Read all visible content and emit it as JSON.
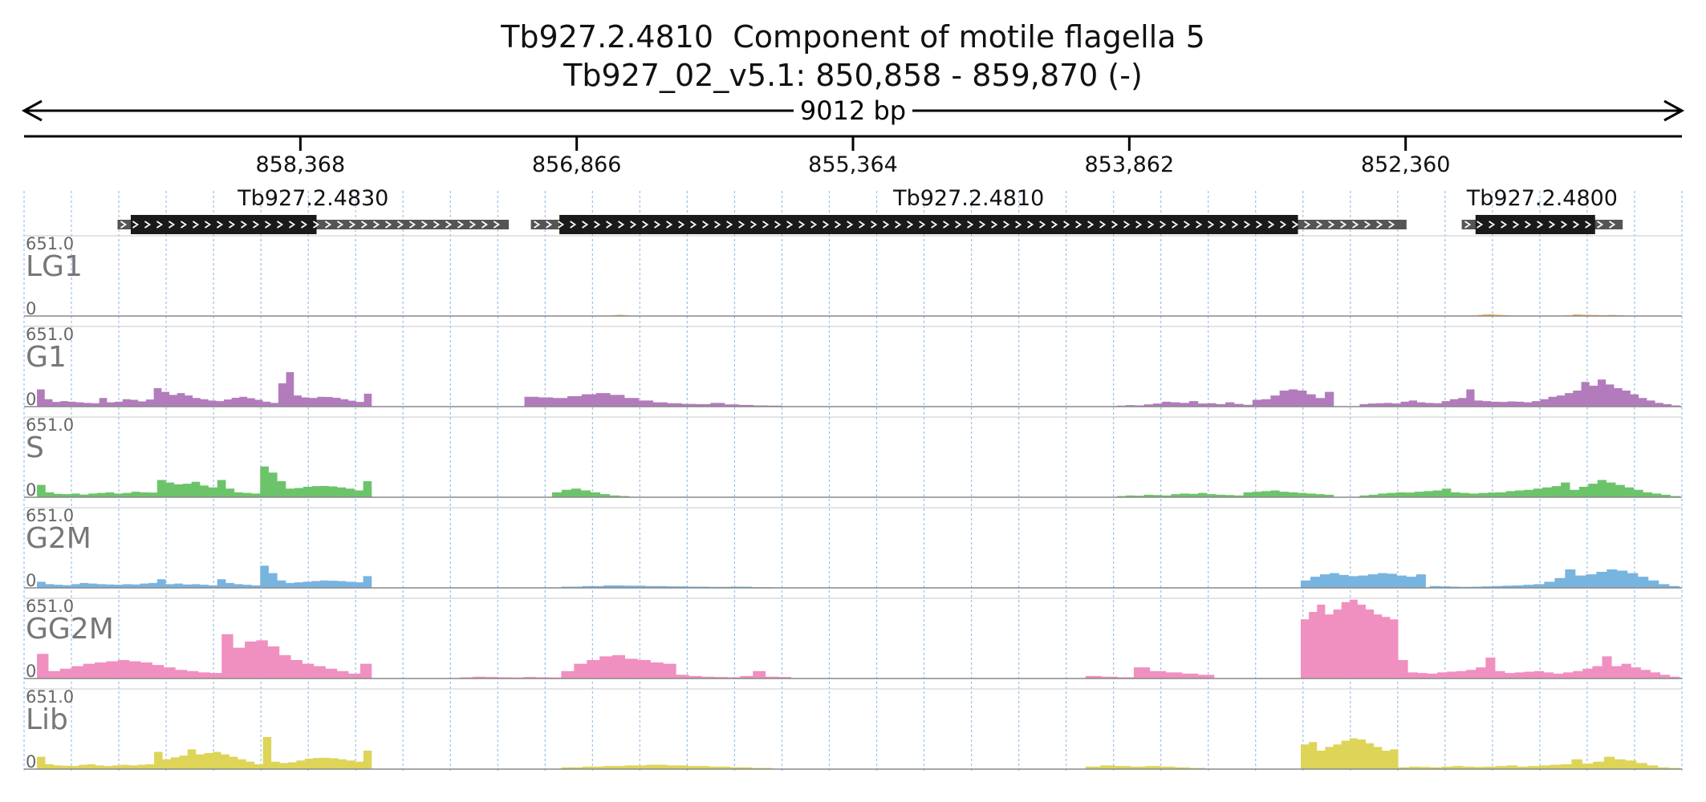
{
  "title": {
    "line1": "Tb927.2.4810  Component of motile flagella 5",
    "line2": "Tb927_02_v5.1: 850,858 - 859,870 (-)"
  },
  "region": {
    "chromosome": "Tb927_02_v5.1",
    "start": 850858,
    "end": 859870,
    "strand": "-",
    "span_label": "9012 bp"
  },
  "chart_data": {
    "type": "area",
    "x_axis": {
      "start": 859870,
      "end": 850858,
      "reversed": true,
      "ticks": [
        858368,
        856866,
        855364,
        853862,
        852360
      ],
      "tick_labels": [
        "858,368",
        "856,866",
        "855,364",
        "853,862",
        "852,360"
      ]
    },
    "genes": [
      {
        "name": "Tb927.2.4830",
        "start": 859362,
        "end": 857235,
        "cds_start": 859290,
        "cds_end": 858280
      },
      {
        "name": "Tb927.2.4810",
        "start": 857115,
        "end": 852355,
        "cds_start": 856960,
        "cds_end": 852945
      },
      {
        "name": "Tb927.2.4800",
        "start": 852055,
        "end": 851180,
        "cds_start": 851980,
        "cds_end": 851330
      }
    ],
    "ymax_label": "651.0",
    "ymin_label": "0",
    "ylim": [
      0,
      651
    ],
    "series": [
      {
        "name": "LG1",
        "color": "#f0a848",
        "regions": [
          {
            "from": 856700,
            "to": 856570,
            "values": [
              3,
              6,
              8,
              10,
              7,
              4
            ]
          },
          {
            "from": 852000,
            "to": 851760,
            "values": [
              4,
              8,
              12,
              14,
              10,
              8,
              6,
              3
            ]
          },
          {
            "from": 851500,
            "to": 851120,
            "values": [
              5,
              12,
              10,
              8,
              6,
              8,
              6,
              3
            ]
          }
        ]
      },
      {
        "name": "G1",
        "color": "#b27cbc",
        "regions": [
          {
            "from": 859800,
            "to": 857980,
            "values": [
              140,
              60,
              38,
              45,
              40,
              35,
              30,
              28,
              70,
              35,
              40,
              60,
              55,
              42,
              58,
              150,
              120,
              95,
              110,
              90,
              70,
              60,
              50,
              45,
              58,
              72,
              80,
              68,
              55,
              40,
              30,
              190,
              280,
              90,
              75,
              70,
              80,
              78,
              72,
              60,
              48,
              38,
              105
            ]
          },
          {
            "from": 857150,
            "to": 855750,
            "values": [
              80,
              75,
              70,
              85,
              100,
              110,
              95,
              70,
              50,
              35,
              28,
              22,
              20,
              30,
              18,
              14,
              10,
              8
            ]
          },
          {
            "from": 853930,
            "to": 852750,
            "values": [
              8,
              12,
              10,
              18,
              25,
              40,
              35,
              30,
              45,
              25,
              28,
              20,
              35,
              22,
              15,
              55,
              60,
              90,
              130,
              140,
              130,
              100,
              70,
              120
            ]
          },
          {
            "from": 852610,
            "to": 850870,
            "values": [
              20,
              25,
              28,
              30,
              25,
              40,
              50,
              35,
              30,
              28,
              45,
              60,
              70,
              140,
              50,
              45,
              40,
              38,
              42,
              40,
              35,
              45,
              60,
              80,
              90,
              110,
              130,
              200,
              170,
              220,
              180,
              150,
              130,
              100,
              70,
              50,
              30,
              20,
              10
            ]
          }
        ]
      },
      {
        "name": "S",
        "color": "#6cc46a",
        "regions": [
          {
            "from": 859800,
            "to": 857980,
            "values": [
              100,
              40,
              28,
              25,
              30,
              22,
              30,
              35,
              40,
              30,
              35,
              45,
              40,
              38,
              140,
              120,
              105,
              110,
              125,
              95,
              80,
              140,
              70,
              40,
              35,
              30,
              250,
              200,
              130,
              70,
              75,
              85,
              90,
              92,
              88,
              80,
              70,
              55,
              130
            ]
          },
          {
            "from": 857000,
            "to": 856580,
            "values": [
              40,
              60,
              70,
              55,
              40,
              25,
              15,
              10
            ]
          },
          {
            "from": 853930,
            "to": 852750,
            "values": [
              10,
              15,
              12,
              20,
              18,
              15,
              25,
              30,
              28,
              35,
              25,
              20,
              18,
              15,
              40,
              45,
              50,
              55,
              45,
              40,
              35,
              30,
              25,
              20
            ]
          },
          {
            "from": 852610,
            "to": 850870,
            "values": [
              15,
              20,
              30,
              35,
              40,
              38,
              45,
              50,
              55,
              70,
              40,
              35,
              30,
              35,
              38,
              40,
              50,
              55,
              60,
              70,
              80,
              90,
              120,
              60,
              85,
              110,
              140,
              120,
              100,
              80,
              60,
              40,
              30,
              20,
              10
            ]
          }
        ]
      },
      {
        "name": "G2M",
        "color": "#78b4e0",
        "regions": [
          {
            "from": 859800,
            "to": 857980,
            "values": [
              50,
              30,
              25,
              22,
              30,
              40,
              35,
              30,
              28,
              25,
              30,
              28,
              35,
              40,
              70,
              30,
              35,
              28,
              30,
              25,
              20,
              70,
              40,
              30,
              25,
              20,
              180,
              120,
              60,
              40,
              45,
              50,
              55,
              60,
              58,
              55,
              50,
              45,
              95
            ]
          },
          {
            "from": 856950,
            "to": 855800,
            "values": [
              10,
              15,
              20,
              18,
              15,
              12,
              10,
              8,
              10,
              6
            ]
          },
          {
            "from": 852930,
            "to": 852250,
            "values": [
              60,
              90,
              110,
              120,
              105,
              95,
              100,
              110,
              120,
              115,
              100,
              90,
              110
            ]
          },
          {
            "from": 852230,
            "to": 850870,
            "values": [
              15,
              12,
              10,
              8,
              10,
              12,
              15,
              18,
              20,
              25,
              30,
              50,
              80,
              150,
              100,
              110,
              130,
              150,
              140,
              120,
              90,
              60,
              30,
              15
            ]
          }
        ]
      },
      {
        "name": "GG2M",
        "color": "#f090c0",
        "regions": [
          {
            "from": 859800,
            "to": 857980,
            "values": [
              200,
              60,
              80,
              100,
              120,
              130,
              140,
              150,
              140,
              130,
              110,
              90,
              70,
              60,
              50,
              45,
              360,
              250,
              300,
              310,
              260,
              190,
              150,
              120,
              100,
              80,
              60,
              40,
              120
            ]
          },
          {
            "from": 857500,
            "to": 856950,
            "values": [
              10,
              15,
              12,
              10,
              8,
              12,
              10,
              8
            ]
          },
          {
            "from": 856950,
            "to": 855700,
            "values": [
              60,
              120,
              150,
              180,
              190,
              160,
              150,
              130,
              120,
              30,
              20,
              15,
              12,
              10,
              20,
              60,
              15,
              12
            ]
          },
          {
            "from": 854100,
            "to": 853400,
            "values": [
              20,
              15,
              10,
              90,
              60,
              50,
              40,
              30
            ]
          },
          {
            "from": 852930,
            "to": 852400,
            "values": [
              480,
              540,
              600,
              520,
              560,
              620,
              640,
              600,
              560,
              520,
              500,
              480
            ]
          },
          {
            "from": 852400,
            "to": 850870,
            "values": [
              150,
              50,
              45,
              40,
              50,
              55,
              60,
              70,
              90,
              170,
              60,
              45,
              50,
              55,
              60,
              50,
              40,
              50,
              60,
              80,
              100,
              180,
              100,
              120,
              90,
              70,
              50,
              30,
              15
            ]
          }
        ]
      },
      {
        "name": "Lib",
        "color": "#ded458",
        "regions": [
          {
            "from": 859800,
            "to": 857980,
            "values": [
              100,
              40,
              30,
              28,
              25,
              35,
              40,
              30,
              25,
              30,
              35,
              30,
              35,
              40,
              140,
              80,
              95,
              110,
              160,
              120,
              130,
              140,
              120,
              100,
              80,
              60,
              40,
              260,
              60,
              50,
              55,
              70,
              85,
              90,
              92,
              88,
              80,
              70,
              60,
              150
            ]
          },
          {
            "from": 856950,
            "to": 855800,
            "values": [
              15,
              20,
              25,
              30,
              35,
              30,
              25,
              20,
              15,
              10
            ]
          },
          {
            "from": 854100,
            "to": 853450,
            "values": [
              20,
              30,
              25,
              20,
              25,
              20,
              15,
              10
            ]
          },
          {
            "from": 852930,
            "to": 852400,
            "values": [
              200,
              220,
              150,
              180,
              200,
              230,
              250,
              240,
              210,
              180,
              150,
              160
            ]
          },
          {
            "from": 852400,
            "to": 850870,
            "values": [
              15,
              20,
              18,
              15,
              20,
              25,
              20,
              18,
              20,
              25,
              30,
              20,
              25,
              30,
              35,
              40,
              80,
              45,
              60,
              100,
              80,
              70,
              50,
              30,
              15,
              10
            ]
          }
        ]
      }
    ]
  }
}
